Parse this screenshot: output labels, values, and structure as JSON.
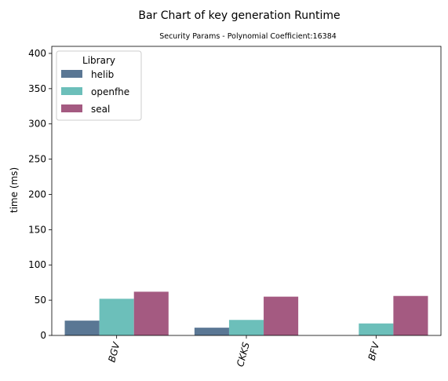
{
  "chart_data": {
    "type": "bar",
    "title": "Bar Chart of key generation  Runtime",
    "subtitle": "Security Params - Polynomial Coefficient:16384",
    "xlabel": "",
    "ylabel": "time (ms)",
    "categories": [
      "BGV",
      "CKKS",
      "BFV"
    ],
    "series": [
      {
        "name": "helib",
        "values": [
          21,
          11,
          null
        ],
        "color": "#5a7794"
      },
      {
        "name": "openfhe",
        "values": [
          52,
          22,
          17
        ],
        "color": "#6cbfba"
      },
      {
        "name": "seal",
        "values": [
          62,
          55,
          56
        ],
        "color": "#a45a81"
      }
    ],
    "ylim": [
      0,
      410
    ],
    "yticks": [
      0,
      50,
      100,
      150,
      200,
      250,
      300,
      350,
      400
    ],
    "grid": false,
    "legend": {
      "title": "Library",
      "placement": "upper-left"
    }
  }
}
